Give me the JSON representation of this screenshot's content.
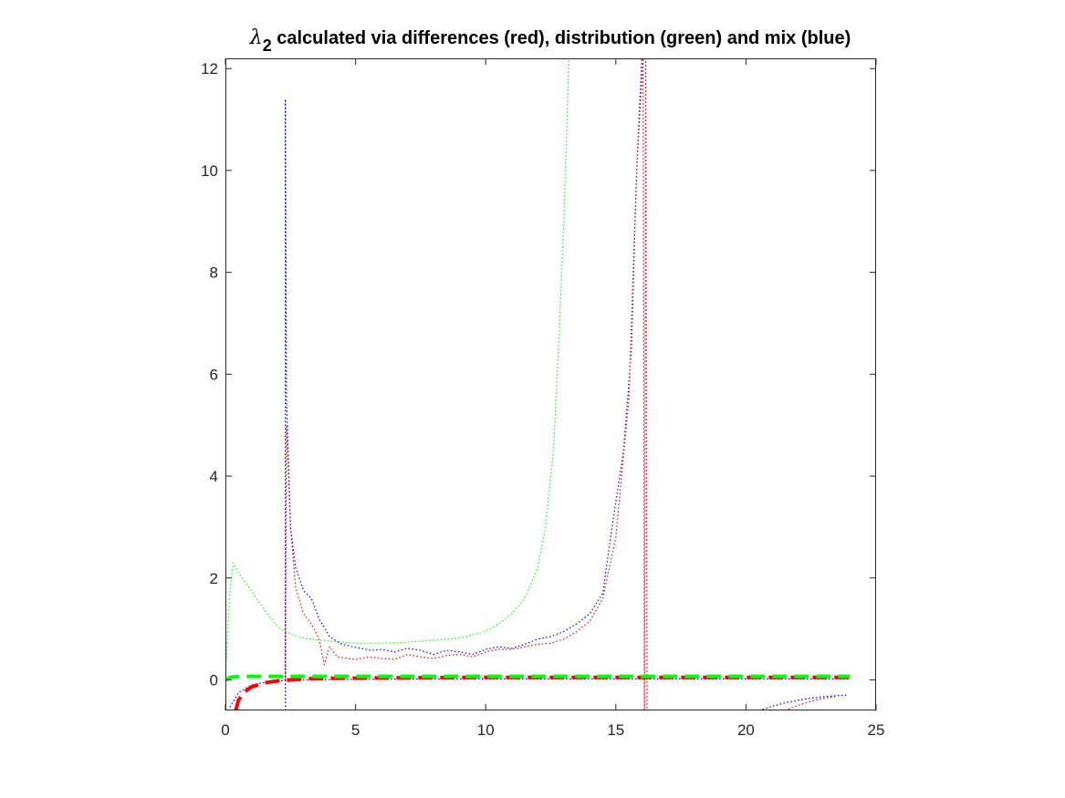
{
  "chart_data": {
    "type": "line",
    "title": {
      "symbol": "λ",
      "subscript": "2",
      "text": " calculated via differences (red), distribution (green) and mix (blue)"
    },
    "xlabel": "",
    "ylabel": "",
    "xlim": [
      0,
      25
    ],
    "ylim": [
      -0.6,
      12.2
    ],
    "xticks": [
      0,
      5,
      10,
      15,
      20,
      25
    ],
    "yticks": [
      0,
      2,
      4,
      6,
      8,
      10,
      12
    ],
    "grid": false,
    "colors": {
      "red": "#ff0000",
      "green": "#00ff00",
      "blue": "#0000ff",
      "axis": "#262626"
    },
    "series": [
      {
        "color": "green",
        "style": "dotted",
        "x": [
          0,
          0.15,
          0.3,
          0.5,
          0.8,
          1.2,
          1.6,
          2.0,
          2.5,
          3.0,
          4.0,
          5.0,
          6.0,
          7.0,
          8.0,
          9.0,
          10.0,
          10.5,
          11.0,
          11.5,
          12.0,
          12.3,
          12.6,
          12.8,
          13.0,
          13.2
        ],
        "y": [
          0,
          1.6,
          2.3,
          2.1,
          1.9,
          1.6,
          1.3,
          1.05,
          0.9,
          0.82,
          0.76,
          0.72,
          0.72,
          0.74,
          0.78,
          0.82,
          0.95,
          1.1,
          1.3,
          1.6,
          2.2,
          3.0,
          4.5,
          6.5,
          9.0,
          12.2
        ]
      },
      {
        "color": "blue",
        "style": "dotted",
        "x": [
          2.3,
          2.3,
          2.35,
          2.5,
          2.7,
          3.0,
          3.3,
          3.6,
          4.0,
          4.4,
          4.8,
          5.2,
          5.6,
          6.0,
          6.5,
          7.0,
          7.5,
          8.0,
          8.5,
          9.0,
          9.5,
          10.0,
          10.5,
          11.0,
          11.5,
          12.0,
          12.5,
          13.0,
          13.5,
          14.0,
          14.5,
          14.8,
          15.0,
          15.3,
          15.6,
          15.8,
          16.0
        ],
        "y": [
          -0.6,
          11.4,
          5.5,
          3.0,
          2.2,
          1.75,
          1.6,
          1.2,
          0.85,
          0.72,
          0.66,
          0.62,
          0.58,
          0.6,
          0.55,
          0.62,
          0.58,
          0.5,
          0.58,
          0.55,
          0.5,
          0.6,
          0.65,
          0.62,
          0.7,
          0.8,
          0.85,
          0.95,
          1.1,
          1.3,
          1.7,
          2.8,
          3.5,
          4.5,
          6.5,
          10.0,
          12.2
        ]
      },
      {
        "color": "red",
        "style": "dotted",
        "x": [
          2.3,
          2.35,
          2.5,
          2.7,
          3.0,
          3.3,
          3.6,
          3.8,
          4.0,
          4.3,
          4.7,
          5.0,
          5.5,
          6.0,
          6.5,
          7.0,
          7.5,
          8.0,
          8.5,
          9.0,
          9.5,
          10.0,
          10.5,
          11.0,
          11.5,
          12.0,
          12.5,
          13.0,
          13.5,
          14.0,
          14.5,
          15.0,
          15.5,
          15.8,
          16.05,
          16.1,
          16.15,
          16.2
        ],
        "y": [
          0,
          5.0,
          3.0,
          1.8,
          1.3,
          1.1,
          0.8,
          0.3,
          0.65,
          0.45,
          0.42,
          0.4,
          0.45,
          0.42,
          0.4,
          0.5,
          0.45,
          0.42,
          0.48,
          0.5,
          0.45,
          0.55,
          0.6,
          0.6,
          0.65,
          0.7,
          0.72,
          0.8,
          0.95,
          1.15,
          1.6,
          2.8,
          5.5,
          10.0,
          12.2,
          -0.6,
          12.2,
          -0.6
        ]
      },
      {
        "color": "red",
        "style": "dotted",
        "x": [
          21.5,
          22.0,
          22.5,
          23.0,
          23.5
        ],
        "y": [
          -0.6,
          -0.5,
          -0.42,
          -0.36,
          -0.32
        ]
      },
      {
        "color": "blue",
        "style": "dotted",
        "x": [
          20.5,
          21.0,
          21.5,
          22.0,
          22.5,
          23.0,
          23.5,
          23.9
        ],
        "y": [
          -0.6,
          -0.52,
          -0.45,
          -0.4,
          -0.36,
          -0.33,
          -0.31,
          -0.3
        ]
      },
      {
        "color": "blue",
        "style": "dotted",
        "x": [
          0.1,
          0.5,
          1.0,
          1.5,
          2.0,
          3.0,
          5.0,
          8.0,
          12.0,
          16.0,
          20.0,
          24.0
        ],
        "y": [
          -0.6,
          -0.25,
          -0.1,
          -0.05,
          -0.02,
          0.0,
          0.01,
          0.02,
          0.02,
          0.02,
          0.02,
          0.02
        ]
      },
      {
        "color": "red",
        "style": "dashed-thick",
        "x": [
          0.4,
          0.5,
          0.7,
          1.0,
          1.5,
          2.0,
          3.0,
          4.0,
          6.0,
          10.0,
          15.0,
          20.0,
          24.0
        ],
        "y": [
          -0.6,
          -0.4,
          -0.25,
          -0.14,
          -0.06,
          -0.02,
          0.02,
          0.03,
          0.04,
          0.05,
          0.05,
          0.05,
          0.05
        ]
      },
      {
        "color": "green",
        "style": "dashed-thick",
        "x": [
          0,
          0.2,
          0.4,
          1.0,
          2.0,
          4.0,
          8.0,
          12.0,
          16.0,
          20.0,
          24.0
        ],
        "y": [
          0.0,
          0.05,
          0.06,
          0.07,
          0.07,
          0.07,
          0.07,
          0.07,
          0.07,
          0.07,
          0.07
        ]
      },
      {
        "color": "blue",
        "style": "vertical-dotted",
        "x": [
          2.3,
          2.3
        ],
        "y": [
          -0.6,
          11.4
        ]
      }
    ]
  }
}
